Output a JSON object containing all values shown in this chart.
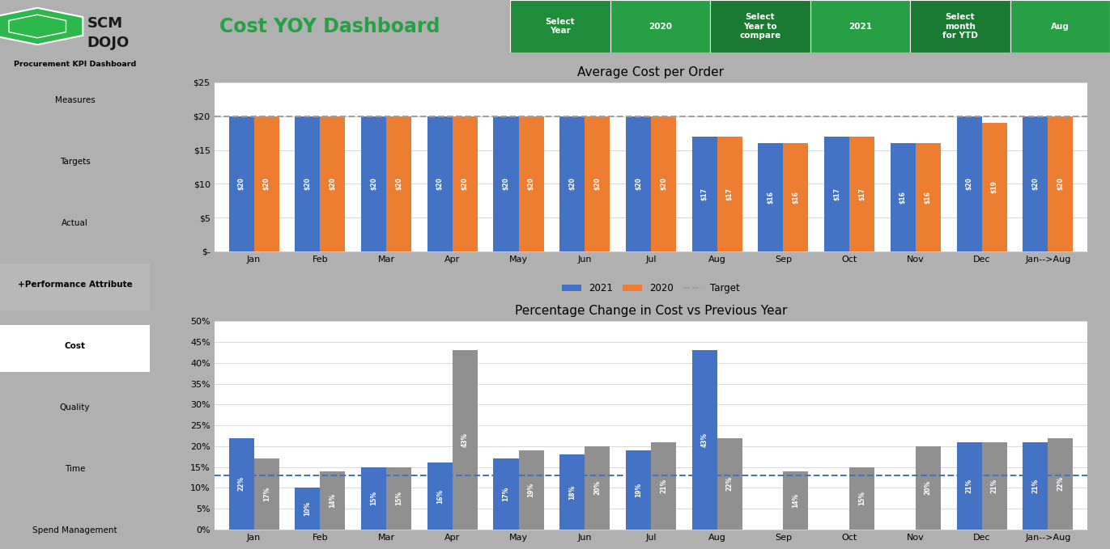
{
  "title_main": "Cost YOY Dashboard",
  "sidebar_title": "Procurement KPI Dashboard",
  "sidebar_items": [
    "Measures",
    "Targets",
    "Actual",
    "+Performance Attribute",
    "Cost",
    "Quality",
    "Time",
    "Spend Management"
  ],
  "header_cells": [
    "Select\nYear",
    "2020",
    "Select\nYear to\ncompare",
    "2021",
    "Select\nmonth\nfor YTD",
    "Aug"
  ],
  "chart1": {
    "title": "Average Cost per Order",
    "categories": [
      "Jan",
      "Feb",
      "Mar",
      "Apr",
      "May",
      "Jun",
      "Jul",
      "Aug",
      "Sep",
      "Oct",
      "Nov",
      "Dec",
      "Jan-->Aug"
    ],
    "series_2021": [
      20,
      20,
      20,
      20,
      20,
      20,
      20,
      17,
      16,
      17,
      16,
      20,
      20
    ],
    "series_2020": [
      20,
      20,
      20,
      20,
      20,
      20,
      20,
      17,
      16,
      17,
      16,
      19,
      20
    ],
    "target": 20,
    "ylim": [
      0,
      25
    ],
    "yticks": [
      0,
      5,
      10,
      15,
      20,
      25
    ],
    "ytick_labels": [
      "$-",
      "$5",
      "$10",
      "$15",
      "$20",
      "$25"
    ],
    "color_2021": "#4472c4",
    "color_2020": "#ed7d31",
    "target_color": "#a0a0a0"
  },
  "chart2": {
    "title": "Percentage Change in Cost vs Previous Year",
    "categories": [
      "Jan",
      "Feb",
      "Mar",
      "Apr",
      "May",
      "Jun",
      "Jul",
      "Aug",
      "Sep",
      "Oct",
      "Nov",
      "Dec",
      "Jan-->Aug"
    ],
    "series_2021": [
      22,
      10,
      15,
      16,
      17,
      18,
      19,
      43,
      0,
      0,
      0,
      21,
      21
    ],
    "series_2020": [
      17,
      14,
      15,
      43,
      19,
      20,
      21,
      22,
      14,
      15,
      20,
      21,
      22
    ],
    "target": 13,
    "ylim": [
      0,
      50
    ],
    "yticks": [
      0,
      5,
      10,
      15,
      20,
      25,
      30,
      35,
      40,
      45,
      50
    ],
    "ytick_labels": [
      "0%",
      "5%",
      "10%",
      "15%",
      "20%",
      "25%",
      "30%",
      "35%",
      "40%",
      "45%",
      "50%"
    ],
    "color_2021": "#4472c4",
    "color_2020": "#909090",
    "target_color": "#4472c4"
  },
  "green_dark": "#1e7b34",
  "green_mid": "#27a045",
  "sidebar_bg": "#c8c8c8",
  "main_bg": "#b0b0b0",
  "logo_bg": "#ffffff",
  "header_white_bg": "#ffffff",
  "chart_panel_bg": "#f0f0f0",
  "chart_inner_bg": "#ffffff"
}
